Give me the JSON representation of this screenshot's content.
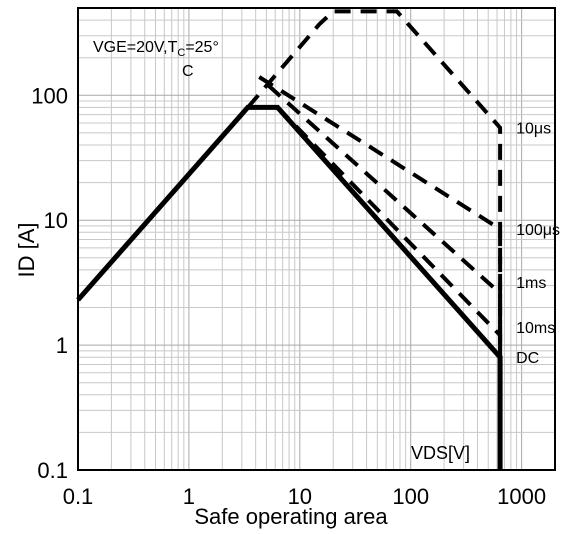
{
  "chart_data": {
    "type": "line",
    "title": "",
    "xlabel": "Safe operating area",
    "ylabel": "ID [A]",
    "xscale": "log",
    "yscale": "log",
    "xlim": [
      0.1,
      2000
    ],
    "ylim": [
      0.1,
      500
    ],
    "grid": true,
    "x_ticks": [
      {
        "value": 0.1,
        "label": "0.1"
      },
      {
        "value": 1,
        "label": "1"
      },
      {
        "value": 10,
        "label": "10"
      },
      {
        "value": 100,
        "label": "100"
      },
      {
        "value": 1000,
        "label": "1000"
      }
    ],
    "y_ticks": [
      {
        "value": 0.1,
        "label": "0.1"
      },
      {
        "value": 1,
        "label": "1"
      },
      {
        "value": 10,
        "label": "10"
      },
      {
        "value": 100,
        "label": "100"
      }
    ],
    "condition": {
      "line1": "VGE=20V,T",
      "line1_sub": "C",
      "line1_end": "=25°",
      "line2": "C"
    },
    "units_note": "VDS[V]",
    "series": [
      {
        "name": "DC",
        "style": "solid",
        "x": [
          0.1,
          3.4,
          6.3,
          640,
          640
        ],
        "y": [
          2.3,
          80,
          80,
          0.8,
          0.1
        ],
        "label_at": {
          "x": 640,
          "y": 0.8
        }
      },
      {
        "name": "10ms",
        "style": "dashed",
        "x": [
          6.3,
          640,
          640
        ],
        "y": [
          80,
          1.2,
          0.8
        ],
        "label_at": {
          "x": 640,
          "y": 1.4
        }
      },
      {
        "name": "1ms",
        "style": "dashed",
        "x": [
          5.2,
          640,
          640
        ],
        "y": [
          120,
          2.6,
          0.8
        ],
        "label_at": {
          "x": 640,
          "y": 3.2
        }
      },
      {
        "name": "100μs",
        "style": "dashed",
        "x": [
          4.3,
          640,
          640
        ],
        "y": [
          140,
          8.5,
          0.8
        ],
        "label_at": {
          "x": 640,
          "y": 8.5
        }
      },
      {
        "name": "10μs",
        "style": "dashed",
        "x": [
          3.4,
          15,
          20,
          75,
          640,
          640
        ],
        "y": [
          80,
          370,
          470,
          470,
          55,
          0.8
        ],
        "label_at": {
          "x": 640,
          "y": 55
        }
      }
    ]
  }
}
